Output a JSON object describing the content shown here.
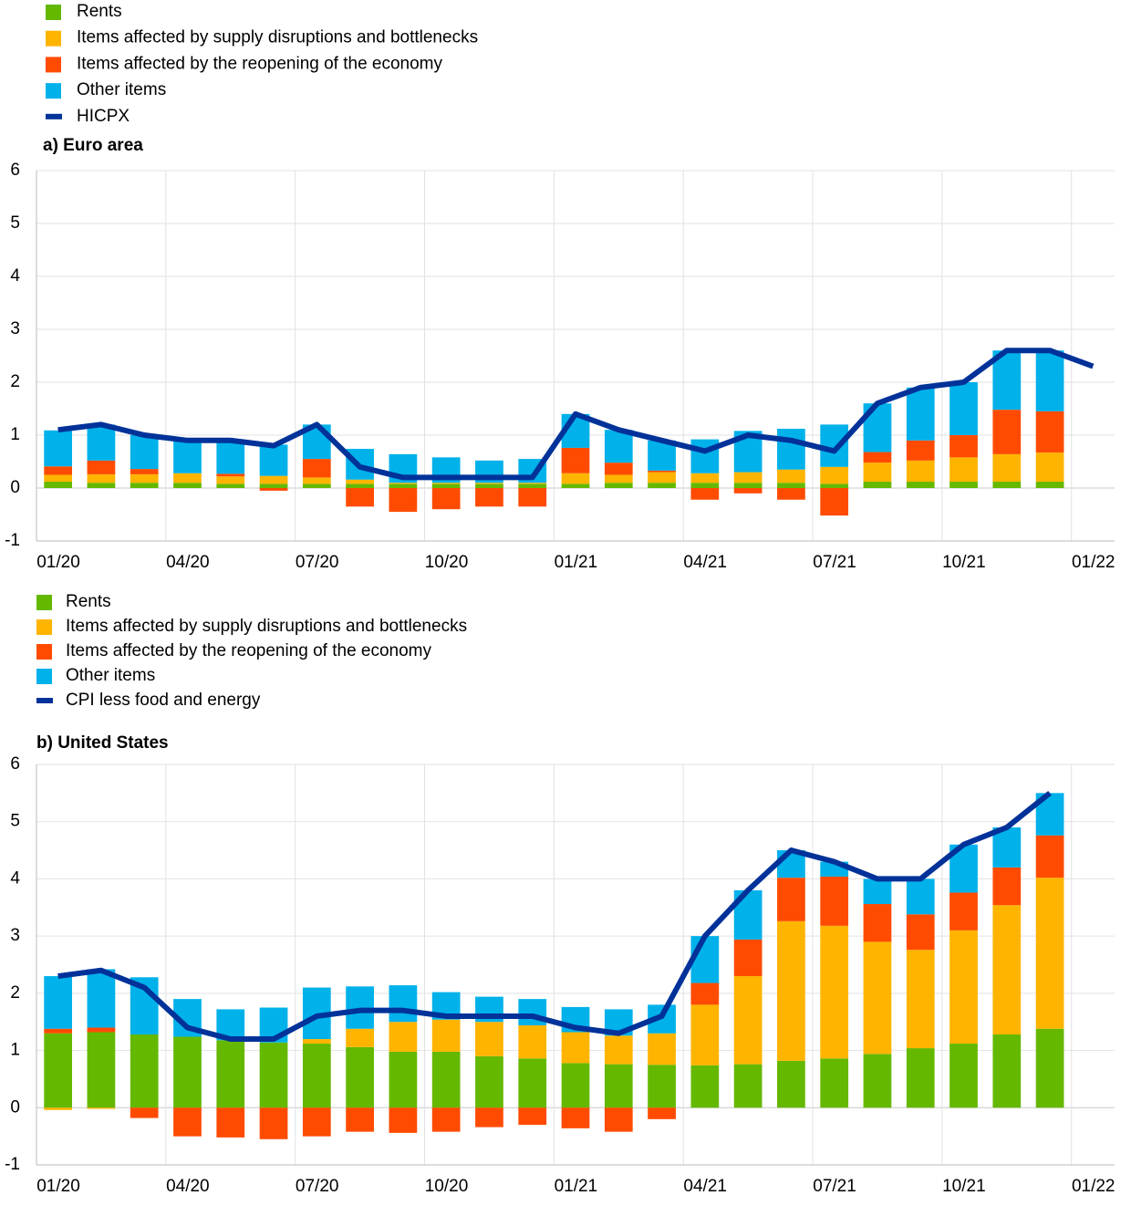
{
  "chart_data": [
    {
      "type": "bar",
      "title": "a) Euro area",
      "x": [
        0.5,
        1.5,
        2.5,
        3.5,
        4.5,
        5.5,
        6.5,
        7.5,
        8.5,
        9.5,
        10.5,
        11.5,
        12.5,
        13.5,
        14.5,
        15.5,
        16.5,
        17.5,
        18.5,
        19.5,
        20.5,
        21.5,
        22.5,
        23.5,
        24.5
      ],
      "xlim": [
        0,
        25
      ],
      "xticks": [
        {
          "value": 0,
          "label": "01/20"
        },
        {
          "value": 3,
          "label": "04/20"
        },
        {
          "value": 6,
          "label": "07/20"
        },
        {
          "value": 9,
          "label": "10/20"
        },
        {
          "value": 12,
          "label": "01/21"
        },
        {
          "value": 15,
          "label": "04/21"
        },
        {
          "value": 18,
          "label": "07/21"
        },
        {
          "value": 21,
          "label": "10/21"
        },
        {
          "value": 24,
          "label": "01/22"
        }
      ],
      "ylim": [
        -1,
        6
      ],
      "yticks": [
        -1,
        0,
        1,
        2,
        3,
        4,
        5,
        6
      ],
      "grid": true,
      "series": [
        {
          "name": "Rents",
          "color": "#65b800",
          "values": [
            0.12,
            0.1,
            0.1,
            0.1,
            0.08,
            0.08,
            0.08,
            0.08,
            0.08,
            0.08,
            0.08,
            0.08,
            0.08,
            0.1,
            0.1,
            0.1,
            0.1,
            0.1,
            0.08,
            0.12,
            0.12,
            0.12,
            0.12,
            0.12,
            null
          ]
        },
        {
          "name": "Items affected by supply disruptions and bottlenecks",
          "color": "#ffb400",
          "values": [
            0.13,
            0.16,
            0.16,
            0.18,
            0.14,
            0.15,
            0.12,
            0.08,
            0.02,
            0.02,
            0.02,
            0.02,
            0.2,
            0.15,
            0.2,
            0.18,
            0.2,
            0.25,
            0.32,
            0.36,
            0.4,
            0.46,
            0.52,
            0.55,
            null
          ]
        },
        {
          "name": "Items affected by the reopening of the economy",
          "color": "#ff4b00",
          "values": [
            0.16,
            0.26,
            0.1,
            0,
            0.05,
            -0.05,
            0.35,
            -0.35,
            -0.45,
            -0.4,
            -0.35,
            -0.35,
            0.48,
            0.23,
            0.03,
            -0.22,
            -0.1,
            -0.22,
            -0.52,
            0.2,
            0.38,
            0.42,
            0.84,
            0.78,
            null
          ]
        },
        {
          "name": "Other items",
          "color": "#00b1ea",
          "values": [
            0.68,
            0.68,
            0.64,
            0.62,
            0.63,
            0.59,
            0.65,
            0.58,
            0.54,
            0.48,
            0.42,
            0.45,
            0.64,
            0.62,
            0.57,
            0.64,
            0.78,
            0.77,
            0.8,
            0.92,
            1.0,
            1.0,
            1.12,
            1.15,
            null
          ]
        },
        {
          "name": "HICPX",
          "color": "#003299",
          "type": "line",
          "values": [
            1.1,
            1.2,
            1.0,
            0.9,
            0.9,
            0.8,
            1.2,
            0.4,
            0.2,
            0.2,
            0.2,
            0.2,
            1.4,
            1.1,
            0.9,
            0.7,
            1.0,
            0.9,
            0.7,
            1.6,
            1.9,
            2.0,
            2.6,
            2.6,
            2.3
          ]
        }
      ]
    },
    {
      "type": "bar",
      "title": "b) United States",
      "x": [
        0.5,
        1.5,
        2.5,
        3.5,
        4.5,
        5.5,
        6.5,
        7.5,
        8.5,
        9.5,
        10.5,
        11.5,
        12.5,
        13.5,
        14.5,
        15.5,
        16.5,
        17.5,
        18.5,
        19.5,
        20.5,
        21.5,
        22.5,
        23.5,
        24.5
      ],
      "xlim": [
        0,
        25
      ],
      "xticks": [
        {
          "value": 0,
          "label": "01/20"
        },
        {
          "value": 3,
          "label": "04/20"
        },
        {
          "value": 6,
          "label": "07/20"
        },
        {
          "value": 9,
          "label": "10/20"
        },
        {
          "value": 12,
          "label": "01/21"
        },
        {
          "value": 15,
          "label": "04/21"
        },
        {
          "value": 18,
          "label": "07/21"
        },
        {
          "value": 21,
          "label": "10/21"
        },
        {
          "value": 24,
          "label": "01/22"
        }
      ],
      "ylim": [
        -1,
        6
      ],
      "yticks": [
        -1,
        0,
        1,
        2,
        3,
        4,
        5,
        6
      ],
      "grid": true,
      "series": [
        {
          "name": "Rents",
          "color": "#65b800",
          "values": [
            1.3,
            1.32,
            1.28,
            1.24,
            1.18,
            1.14,
            1.12,
            1.06,
            0.98,
            0.98,
            0.9,
            0.86,
            0.78,
            0.76,
            0.75,
            0.74,
            0.76,
            0.82,
            0.86,
            0.94,
            1.04,
            1.12,
            1.28,
            1.38,
            null
          ]
        },
        {
          "name": "Items affected by supply disruptions and bottlenecks",
          "color": "#ffb400",
          "values": [
            -0.04,
            -0.02,
            0,
            0,
            0,
            0,
            0.08,
            0.32,
            0.52,
            0.56,
            0.6,
            0.58,
            0.54,
            0.5,
            0.55,
            1.06,
            1.54,
            2.44,
            2.32,
            1.96,
            1.72,
            1.98,
            2.26,
            2.64,
            null
          ]
        },
        {
          "name": "Items affected by the reopening of the economy",
          "color": "#ff4b00",
          "values": [
            0.08,
            0.08,
            -0.18,
            -0.5,
            -0.52,
            -0.55,
            -0.5,
            -0.42,
            -0.44,
            -0.42,
            -0.34,
            -0.3,
            -0.36,
            -0.42,
            -0.2,
            0.38,
            0.64,
            0.76,
            0.86,
            0.66,
            0.62,
            0.66,
            0.66,
            0.74,
            null
          ]
        },
        {
          "name": "Other items",
          "color": "#00b1ea",
          "values": [
            0.92,
            1.02,
            1.0,
            0.66,
            0.54,
            0.61,
            0.9,
            0.74,
            0.64,
            0.48,
            0.44,
            0.46,
            0.44,
            0.46,
            0.5,
            0.82,
            0.86,
            0.48,
            0.26,
            0.44,
            0.62,
            0.84,
            0.7,
            0.74,
            null
          ]
        },
        {
          "name": "CPI less food and energy",
          "color": "#003299",
          "type": "line",
          "values": [
            2.3,
            2.4,
            2.1,
            1.4,
            1.2,
            1.2,
            1.6,
            1.7,
            1.7,
            1.6,
            1.6,
            1.6,
            1.4,
            1.3,
            1.6,
            3.0,
            3.8,
            4.5,
            4.3,
            4.0,
            4.0,
            4.6,
            4.9,
            5.5,
            null
          ]
        }
      ]
    }
  ]
}
